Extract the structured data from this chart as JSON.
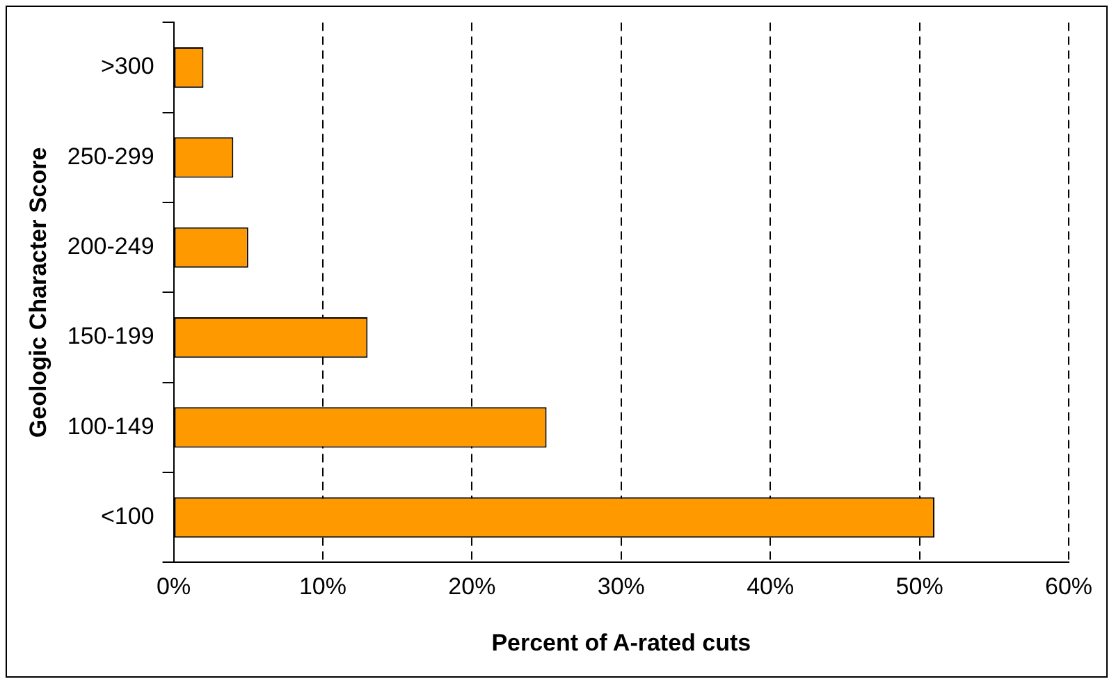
{
  "chart_data": {
    "type": "bar",
    "orientation": "horizontal",
    "xlabel": "Percent of A-rated cuts",
    "ylabel": "Geologic Character Score",
    "categories": [
      ">300",
      "250-299",
      "200-249",
      "150-199",
      "100-149",
      "<100"
    ],
    "values": [
      2,
      4,
      5,
      13,
      25,
      51
    ],
    "color": "#ff9900",
    "xlim": [
      0,
      60
    ],
    "xticks": [
      {
        "value": 0,
        "label": "0%"
      },
      {
        "value": 10,
        "label": "10%"
      },
      {
        "value": 20,
        "label": "20%"
      },
      {
        "value": 30,
        "label": "30%"
      },
      {
        "value": 40,
        "label": "40%"
      },
      {
        "value": 50,
        "label": "50%"
      },
      {
        "value": 60,
        "label": "60%"
      }
    ],
    "grid": "x",
    "legend": false
  }
}
